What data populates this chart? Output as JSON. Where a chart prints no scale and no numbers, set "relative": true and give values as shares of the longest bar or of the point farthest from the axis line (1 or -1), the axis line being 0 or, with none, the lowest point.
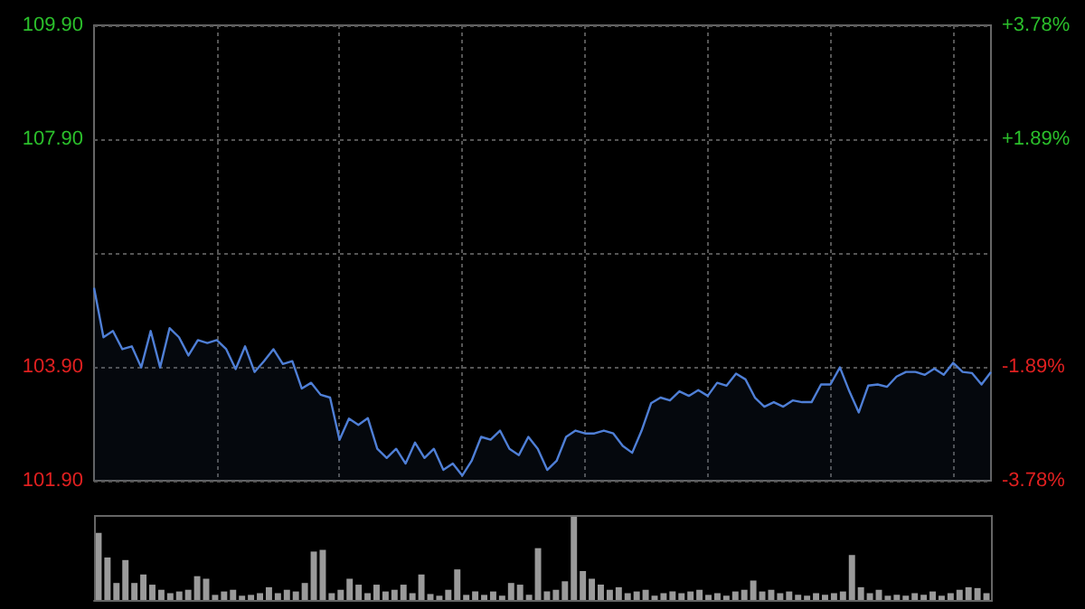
{
  "chart_data": [
    {
      "type": "area",
      "categories": [
        null,
        null,
        null,
        null,
        null,
        null,
        null,
        null,
        null,
        null,
        null,
        null,
        null,
        null,
        null,
        null,
        null,
        null,
        null,
        null,
        null,
        null,
        null,
        null,
        null,
        null,
        null,
        null,
        null,
        null,
        null,
        null,
        null,
        null,
        null,
        null,
        null,
        null,
        null,
        null,
        null,
        null,
        null,
        null,
        null,
        null,
        null,
        null,
        null,
        null,
        null,
        null,
        null,
        null,
        null,
        null,
        null,
        null,
        null,
        null,
        null,
        null,
        null,
        null,
        null,
        null,
        null,
        null,
        null,
        null,
        null,
        null,
        null,
        null,
        null,
        null,
        null,
        null,
        null,
        null,
        null,
        null,
        null,
        null,
        null,
        null,
        null,
        null,
        null,
        null,
        null,
        null,
        null,
        null,
        null,
        null
      ],
      "series": [
        {
          "color": "#4f7fd6",
          "values": [
            105.29,
            104.42,
            104.53,
            104.21,
            104.26,
            103.89,
            104.53,
            103.89,
            104.58,
            104.42,
            104.1,
            104.37,
            104.32,
            104.37,
            104.21,
            103.86,
            104.26,
            103.81,
            104.0,
            104.21,
            103.95,
            104.0,
            103.52,
            103.62,
            103.41,
            103.36,
            102.62,
            102.99,
            102.88,
            103.0,
            102.46,
            102.3,
            102.46,
            102.2,
            102.57,
            102.3,
            102.46,
            102.09,
            102.2,
            101.99,
            102.25,
            102.67,
            102.62,
            102.78,
            102.46,
            102.35,
            102.67,
            102.46,
            102.09,
            102.25,
            102.67,
            102.78,
            102.73,
            102.73,
            102.78,
            102.73,
            102.51,
            102.39,
            102.78,
            103.26,
            103.36,
            103.31,
            103.47,
            103.39,
            103.49,
            103.39,
            103.62,
            103.57,
            103.78,
            103.68,
            103.36,
            103.2,
            103.28,
            103.2,
            103.31,
            103.28,
            103.28,
            103.59,
            103.59,
            103.89,
            103.47,
            103.1,
            103.57,
            103.59,
            103.55,
            103.73,
            103.81,
            103.81,
            103.76,
            103.87,
            103.76,
            103.97,
            103.81,
            103.79,
            103.59,
            103.81
          ]
        }
      ],
      "ylim": [
        101.9,
        109.9
      ],
      "yticks": [
        {
          "value": 101.9,
          "label": "101.90"
        },
        {
          "value": 103.9,
          "label": "103.90"
        },
        {
          "value": 105.9,
          "label": null
        },
        {
          "value": 107.9,
          "label": "107.90"
        },
        {
          "value": 109.9,
          "label": "109.90"
        }
      ],
      "y2lim": [
        -3.78,
        3.78
      ],
      "y2ticks": [
        {
          "value": -3.78,
          "label": "-3.78%"
        },
        {
          "value": -1.89,
          "label": "-1.89%"
        },
        {
          "value": 0,
          "label": null
        },
        {
          "value": 1.89,
          "label": "+1.89%"
        },
        {
          "value": 3.78,
          "label": "+3.78%"
        }
      ],
      "grid": true
    },
    {
      "type": "bar",
      "relative": true,
      "color": "#9a9a9a",
      "categories": [
        null,
        null,
        null,
        null,
        null,
        null,
        null,
        null,
        null,
        null,
        null,
        null,
        null,
        null,
        null,
        null,
        null,
        null,
        null,
        null,
        null,
        null,
        null,
        null,
        null,
        null,
        null,
        null,
        null,
        null,
        null,
        null,
        null,
        null,
        null,
        null,
        null,
        null,
        null,
        null,
        null,
        null,
        null,
        null,
        null,
        null,
        null,
        null,
        null,
        null,
        null,
        null,
        null,
        null,
        null,
        null,
        null,
        null,
        null,
        null,
        null,
        null,
        null,
        null,
        null,
        null,
        null,
        null,
        null,
        null,
        null,
        null,
        null,
        null,
        null,
        null,
        null,
        null,
        null,
        null,
        null,
        null,
        null,
        null,
        null,
        null,
        null,
        null,
        null,
        null,
        null,
        null,
        null,
        null,
        null,
        null,
        null,
        null,
        null,
        null
      ],
      "values": [
        0.79,
        0.5,
        0.2,
        0.47,
        0.2,
        0.3,
        0.18,
        0.12,
        0.08,
        0.1,
        0.12,
        0.28,
        0.25,
        0.06,
        0.1,
        0.12,
        0.05,
        0.06,
        0.08,
        0.15,
        0.08,
        0.12,
        0.1,
        0.2,
        0.57,
        0.59,
        0.08,
        0.12,
        0.25,
        0.18,
        0.08,
        0.18,
        0.1,
        0.12,
        0.18,
        0.08,
        0.3,
        0.07,
        0.05,
        0.12,
        0.36,
        0.06,
        0.1,
        0.06,
        0.1,
        0.05,
        0.2,
        0.18,
        0.06,
        0.61,
        0.1,
        0.12,
        0.22,
        1,
        0.34,
        0.25,
        0.18,
        0.12,
        0.15,
        0.08,
        0.1,
        0.12,
        0.05,
        0.08,
        0.1,
        0.08,
        0.1,
        0.12,
        0.06,
        0.08,
        0.05,
        0.1,
        0.12,
        0.23,
        0.1,
        0.12,
        0.08,
        0.1,
        0.06,
        0.05,
        0.08,
        0.06,
        0.08,
        0.1,
        0.53,
        0.15,
        0.08,
        0.12,
        0.05,
        0.06,
        0.05,
        0.08,
        0.06,
        0.1,
        0.05,
        0.08,
        0.12,
        0.15,
        0.14,
        0.08
      ],
      "grid": false
    }
  ]
}
